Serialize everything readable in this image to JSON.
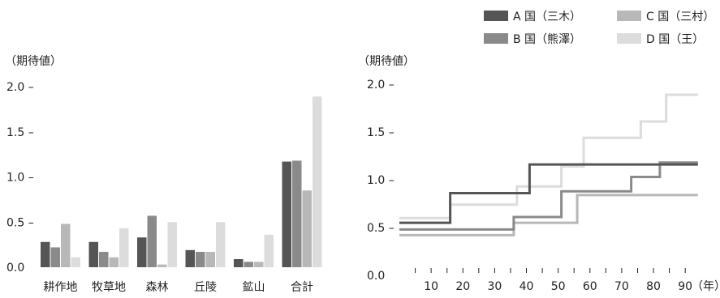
{
  "legend": [
    {
      "label": "A 国（三木）",
      "color": "#555555"
    },
    {
      "label": "C 国（三村）",
      "color": "#b8b8b8"
    },
    {
      "label": "B 国（熊澤）",
      "color": "#8a8a8a"
    },
    {
      "label": "D 国（王）",
      "color": "#dcdcdc"
    }
  ],
  "chart_data": [
    {
      "type": "bar",
      "ylabel": "（期待値）",
      "xlabel": "",
      "ylim": [
        0,
        2.0
      ],
      "yticks": [
        "0.0",
        "0.5 –",
        "1.0 –",
        "1.5 –",
        "2.0 –"
      ],
      "categories": [
        "耕作地",
        "牧草地",
        "森林",
        "丘陵",
        "鉱山",
        "合計"
      ],
      "series": [
        {
          "name": "A 国（三木）",
          "color": "#555555",
          "values": [
            0.28,
            0.28,
            0.33,
            0.19,
            0.09,
            1.17
          ]
        },
        {
          "name": "B 国（熊澤）",
          "color": "#8a8a8a",
          "values": [
            0.22,
            0.17,
            0.57,
            0.17,
            0.06,
            1.18
          ]
        },
        {
          "name": "C 国（三村）",
          "color": "#b8b8b8",
          "values": [
            0.48,
            0.11,
            0.03,
            0.17,
            0.06,
            0.85
          ]
        },
        {
          "name": "D 国（王）",
          "color": "#dcdcdc",
          "values": [
            0.11,
            0.43,
            0.5,
            0.5,
            0.36,
            1.89
          ]
        }
      ],
      "grid": false
    },
    {
      "type": "line",
      "ylabel": "（期待値）",
      "xlabel": "（年）",
      "ylim": [
        0,
        2.0
      ],
      "xlim": [
        0,
        94
      ],
      "yticks": [
        "0.0",
        "0.5 –",
        "1.0 –",
        "1.5 –",
        "2.0 –"
      ],
      "xticks": [
        10,
        20,
        30,
        40,
        50,
        60,
        70,
        80,
        90
      ],
      "series": [
        {
          "name": "A 国（三木）",
          "color": "#555555",
          "x": [
            0,
            16,
            16,
            41,
            41,
            94
          ],
          "y": [
            0.55,
            0.55,
            0.86,
            0.86,
            1.16,
            1.16
          ]
        },
        {
          "name": "B 国（熊澤）",
          "color": "#8a8a8a",
          "x": [
            0,
            36,
            36,
            51,
            51,
            73,
            73,
            82,
            82,
            94
          ],
          "y": [
            0.48,
            0.48,
            0.61,
            0.61,
            0.88,
            0.88,
            1.03,
            1.03,
            1.18,
            1.18
          ]
        },
        {
          "name": "C 国（三村）",
          "color": "#b8b8b8",
          "x": [
            0,
            36,
            36,
            56,
            56,
            94
          ],
          "y": [
            0.42,
            0.42,
            0.55,
            0.55,
            0.84,
            0.84
          ]
        },
        {
          "name": "D 国（王）",
          "color": "#dcdcdc",
          "x": [
            0,
            16,
            16,
            37,
            37,
            51,
            51,
            58,
            58,
            76,
            76,
            84,
            84,
            94
          ],
          "y": [
            0.6,
            0.6,
            0.74,
            0.74,
            0.93,
            0.93,
            1.14,
            1.14,
            1.44,
            1.44,
            1.61,
            1.61,
            1.89,
            1.89
          ]
        }
      ],
      "grid": false
    }
  ]
}
